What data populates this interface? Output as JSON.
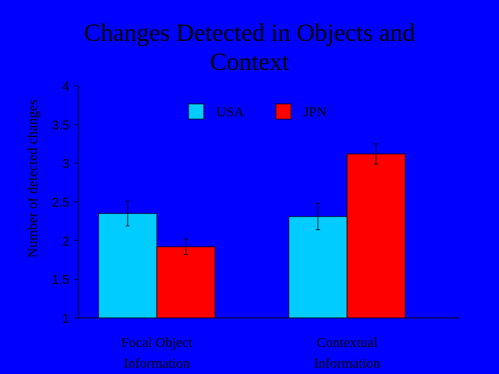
{
  "chart_data": {
    "type": "bar",
    "title": "Changes Detected in Objects and Context",
    "xlabel": "",
    "ylabel": "Number of detected changes",
    "ylim": [
      1,
      4
    ],
    "yticks": [
      "1",
      "1.5",
      "2",
      "2.5",
      "3",
      "3.5",
      "4"
    ],
    "categories": [
      [
        "Focal Object",
        "Information"
      ],
      [
        "Contextual",
        "Information"
      ]
    ],
    "series": [
      {
        "name": "USA",
        "color": "#00CCFF",
        "values": [
          2.35,
          2.31
        ],
        "error": [
          0.16,
          0.17
        ]
      },
      {
        "name": "JPN",
        "color": "#FF0000",
        "values": [
          1.92,
          3.12
        ],
        "error": [
          0.1,
          0.13
        ]
      }
    ],
    "legend": "top",
    "grid": false
  },
  "colors": {
    "background": "#0000FF",
    "axis": "#000000"
  }
}
